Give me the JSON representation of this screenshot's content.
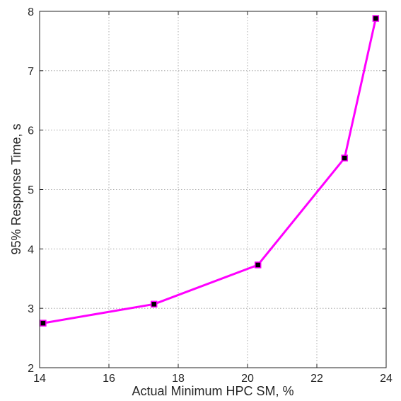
{
  "chart_data": {
    "type": "line",
    "title": "",
    "xlabel": "Actual Minimum HPC SM, %",
    "ylabel": "95% Response Time, s",
    "xlim": [
      14,
      24
    ],
    "ylim": [
      2,
      8
    ],
    "xticks": [
      14,
      16,
      18,
      20,
      22,
      24
    ],
    "yticks": [
      2,
      3,
      4,
      5,
      6,
      7,
      8
    ],
    "grid": true,
    "grid_style": "dotted",
    "series": [
      {
        "color": "#ff00ff",
        "marker": "square",
        "marker_color": "#000000",
        "x": [
          14.1,
          17.3,
          20.3,
          22.8,
          23.7
        ],
        "y": [
          2.75,
          3.07,
          3.73,
          5.53,
          7.88
        ]
      }
    ]
  }
}
